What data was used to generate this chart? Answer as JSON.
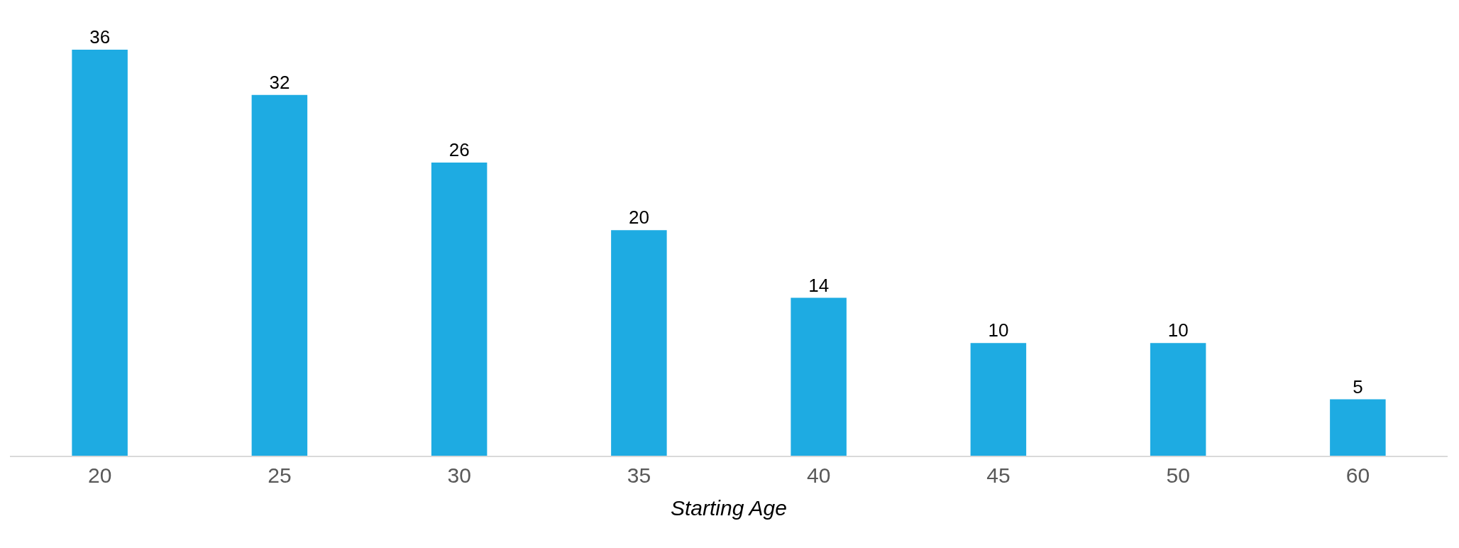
{
  "chart_data": {
    "type": "bar",
    "xlabel": "Starting Age",
    "categories": [
      "20",
      "25",
      "30",
      "35",
      "40",
      "45",
      "50",
      "60"
    ],
    "values": [
      36,
      32,
      26,
      20,
      14,
      10,
      10,
      5
    ],
    "color": "#1eabe2",
    "data_labels": true,
    "tick_labels": "x"
  }
}
